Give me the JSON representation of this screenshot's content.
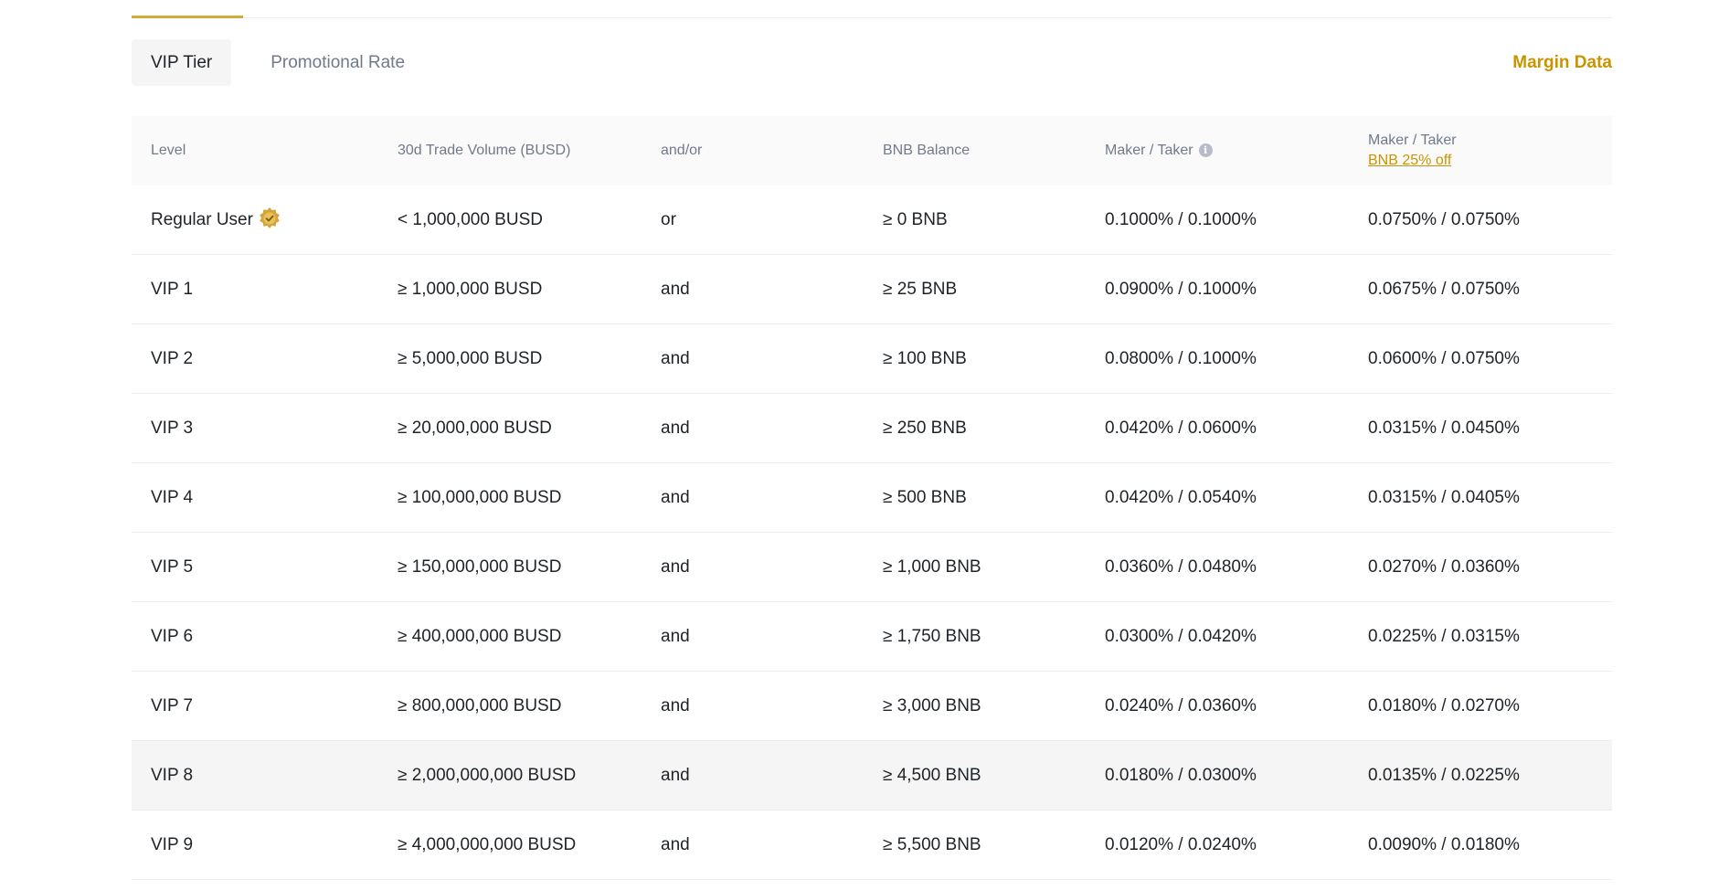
{
  "tabs": [
    {
      "label": "VIP Tier",
      "active": true
    },
    {
      "label": "Promotional Rate",
      "active": false
    }
  ],
  "margin_link": "Margin Data",
  "table": {
    "headers": {
      "level": "Level",
      "volume": "30d Trade Volume (BUSD)",
      "andor": "and/or",
      "bnb": "BNB Balance",
      "maker_taker": "Maker / Taker",
      "maker_taker_discount": "Maker / Taker",
      "discount_link": "BNB 25% off"
    },
    "rows": [
      {
        "level": "Regular User",
        "volume": "< 1,000,000 BUSD",
        "andor": "or",
        "bnb": "≥ 0 BNB",
        "rate": "0.1000% / 0.1000%",
        "discount": "0.0750% / 0.0750%"
      },
      {
        "level": "VIP 1",
        "volume": "≥ 1,000,000 BUSD",
        "andor": "and",
        "bnb": "≥ 25 BNB",
        "rate": "0.0900% / 0.1000%",
        "discount": "0.0675% / 0.0750%"
      },
      {
        "level": "VIP 2",
        "volume": "≥ 5,000,000 BUSD",
        "andor": "and",
        "bnb": "≥ 100 BNB",
        "rate": "0.0800% / 0.1000%",
        "discount": "0.0600% / 0.0750%"
      },
      {
        "level": "VIP 3",
        "volume": "≥ 20,000,000 BUSD",
        "andor": "and",
        "bnb": "≥ 250 BNB",
        "rate": "0.0420% / 0.0600%",
        "discount": "0.0315% / 0.0450%"
      },
      {
        "level": "VIP 4",
        "volume": "≥ 100,000,000 BUSD",
        "andor": "and",
        "bnb": "≥ 500 BNB",
        "rate": "0.0420% / 0.0540%",
        "discount": "0.0315% / 0.0405%"
      },
      {
        "level": "VIP 5",
        "volume": "≥ 150,000,000 BUSD",
        "andor": "and",
        "bnb": "≥ 1,000 BNB",
        "rate": "0.0360% / 0.0480%",
        "discount": "0.0270% / 0.0360%"
      },
      {
        "level": "VIP 6",
        "volume": "≥ 400,000,000 BUSD",
        "andor": "and",
        "bnb": "≥ 1,750 BNB",
        "rate": "0.0300% / 0.0420%",
        "discount": "0.0225% / 0.0315%"
      },
      {
        "level": "VIP 7",
        "volume": "≥ 800,000,000 BUSD",
        "andor": "and",
        "bnb": "≥ 3,000 BNB",
        "rate": "0.0240% / 0.0360%",
        "discount": "0.0180% / 0.0270%"
      },
      {
        "level": "VIP 8",
        "volume": "≥ 2,000,000,000 BUSD",
        "andor": "and",
        "bnb": "≥ 4,500 BNB",
        "rate": "0.0180% / 0.0300%",
        "discount": "0.0135% / 0.0225%"
      },
      {
        "level": "VIP 9",
        "volume": "≥ 4,000,000,000 BUSD",
        "andor": "and",
        "bnb": "≥ 5,500 BNB",
        "rate": "0.0120% / 0.0240%",
        "discount": "0.0090% / 0.0180%"
      }
    ],
    "current_row_icon": "verified-badge-icon",
    "highlighted_row": 8
  },
  "colors": {
    "accent": "#c99400",
    "tab_underline": "#d5a93a",
    "header_bg": "#fafafa",
    "highlight_bg": "#f5f5f5"
  }
}
